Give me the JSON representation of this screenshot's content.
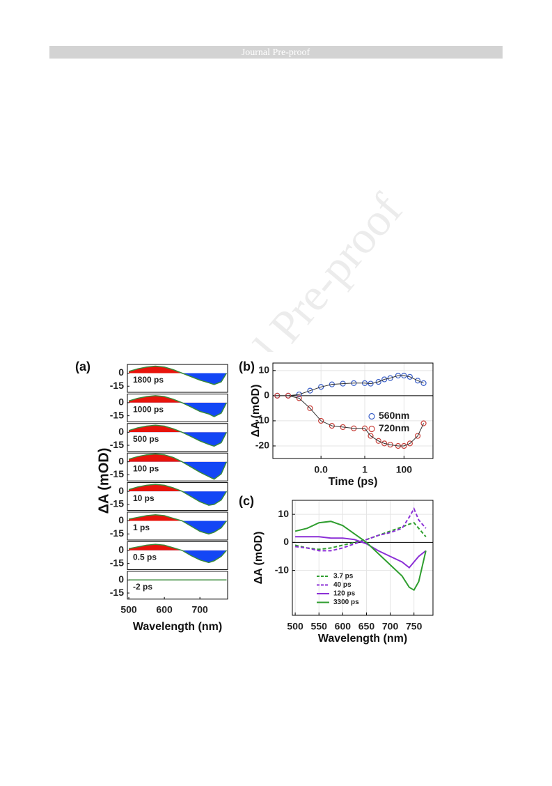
{
  "header": {
    "title": "Journal Pre-proof"
  },
  "watermark": "Journal Pre-proof",
  "chart_data": [
    {
      "type": "area",
      "panel_label": "(a)",
      "xlabel": "Wavelength (nm)",
      "ylabel": "ΔA (mOD)",
      "x": [
        500,
        525,
        550,
        575,
        600,
        625,
        650,
        675,
        700,
        725,
        740,
        760,
        775
      ],
      "series": [
        {
          "name": "1800 ps",
          "values": [
            2,
            5,
            7,
            8,
            7,
            4,
            0,
            -4,
            -8,
            -11,
            -13,
            -10,
            0
          ]
        },
        {
          "name": "1000 ps",
          "values": [
            2,
            5,
            7,
            8,
            7,
            4,
            0,
            -5,
            -10,
            -13,
            -16,
            -12,
            0
          ]
        },
        {
          "name": "500 ps",
          "values": [
            2,
            5,
            7,
            8,
            7,
            4,
            0,
            -5,
            -10,
            -14,
            -16,
            -12,
            0
          ]
        },
        {
          "name": "100 ps",
          "values": [
            3,
            6,
            8,
            9,
            8,
            5,
            0,
            -6,
            -12,
            -17,
            -20,
            -14,
            0
          ]
        },
        {
          "name": "10 ps",
          "values": [
            2,
            5,
            7,
            8,
            7,
            4,
            0,
            -6,
            -12,
            -16,
            -15,
            -10,
            0
          ]
        },
        {
          "name": "1 ps",
          "values": [
            2,
            4,
            6,
            7,
            6,
            3,
            0,
            -6,
            -12,
            -15,
            -13,
            -8,
            0
          ]
        },
        {
          "name": "0.5 ps",
          "values": [
            2,
            4,
            6,
            7,
            6,
            3,
            0,
            -6,
            -11,
            -14,
            -12,
            -7,
            0
          ]
        },
        {
          "name": "-2 ps",
          "values": [
            0,
            0,
            0,
            0,
            0,
            0,
            0,
            0,
            0,
            0,
            0,
            0,
            0
          ]
        }
      ],
      "positive_color": "#e8140c",
      "negative_color": "#1346f5",
      "line_color": "#3a8a3a",
      "xlim": [
        496,
        778
      ],
      "xticks": [
        500,
        600,
        700
      ],
      "ylim": [
        -22,
        10
      ],
      "yticks": [
        0,
        -15
      ]
    },
    {
      "type": "scatter",
      "panel_label": "(b)",
      "xlabel": "Time (ps)",
      "ylabel": "ΔA (mOD)",
      "xscale": "linear-log",
      "xbreak": 1,
      "x": [
        -1,
        -0.75,
        -0.5,
        -0.25,
        0,
        0.25,
        0.5,
        0.75,
        1,
        2,
        5,
        10,
        20,
        50,
        100,
        200,
        500,
        1000
      ],
      "series": [
        {
          "name": "560nm",
          "color": "#3a5fc8",
          "values": [
            0,
            0,
            0.5,
            2,
            3.5,
            4.5,
            4.8,
            5,
            5,
            4.8,
            5.5,
            6.5,
            7,
            8,
            8,
            7.5,
            6,
            5
          ]
        },
        {
          "name": "720nm",
          "color": "#c8403a",
          "values": [
            0,
            0,
            -1,
            -5,
            -10,
            -12,
            -12.5,
            -13,
            -13,
            -16,
            -18,
            -19,
            -19.5,
            -20,
            -20,
            -19,
            -16,
            -11
          ]
        }
      ],
      "xlim": [
        -1.1,
        3000
      ],
      "xticks": [
        {
          "value": 0,
          "label": "0.0"
        },
        1,
        100
      ],
      "ylim": [
        -25,
        13
      ],
      "yticks": [
        10,
        0,
        -10,
        -20
      ],
      "grid": true,
      "legend": "right"
    },
    {
      "type": "line",
      "panel_label": "(c)",
      "xlabel": "Wavelength (nm)",
      "ylabel": "ΔA (mOD)",
      "x": [
        500,
        525,
        550,
        575,
        600,
        625,
        650,
        675,
        700,
        725,
        740,
        750,
        760,
        775
      ],
      "series": [
        {
          "name": "3.7 ps",
          "color": "#2f9e2f",
          "dash": true,
          "values": [
            -1,
            -2,
            -2.5,
            -2,
            -1,
            0,
            1,
            2.5,
            4,
            5.5,
            6.5,
            7,
            5,
            2
          ]
        },
        {
          "name": "40 ps",
          "color": "#8b2fd6",
          "dash": true,
          "values": [
            -1.5,
            -2,
            -3,
            -3,
            -2,
            -0.5,
            1,
            2.5,
            3.5,
            5,
            9,
            12,
            8,
            5
          ]
        },
        {
          "name": "120 ps",
          "color": "#8b2fd6",
          "dash": false,
          "values": [
            2,
            2,
            2,
            1.5,
            1.5,
            1,
            -0.5,
            -3,
            -5,
            -7,
            -9,
            -7,
            -5,
            -3
          ]
        },
        {
          "name": "3300 ps",
          "color": "#2f9e2f",
          "dash": false,
          "values": [
            4,
            5,
            7,
            7.5,
            6,
            3,
            0,
            -4,
            -8,
            -12,
            -16,
            -17,
            -14,
            -3
          ]
        }
      ],
      "xlim": [
        494,
        790
      ],
      "xticks": [
        500,
        550,
        600,
        650,
        700,
        750
      ],
      "ylim": [
        -26,
        15
      ],
      "yticks": [
        10,
        0,
        -10
      ],
      "grid": true,
      "legend": "lower left"
    }
  ]
}
